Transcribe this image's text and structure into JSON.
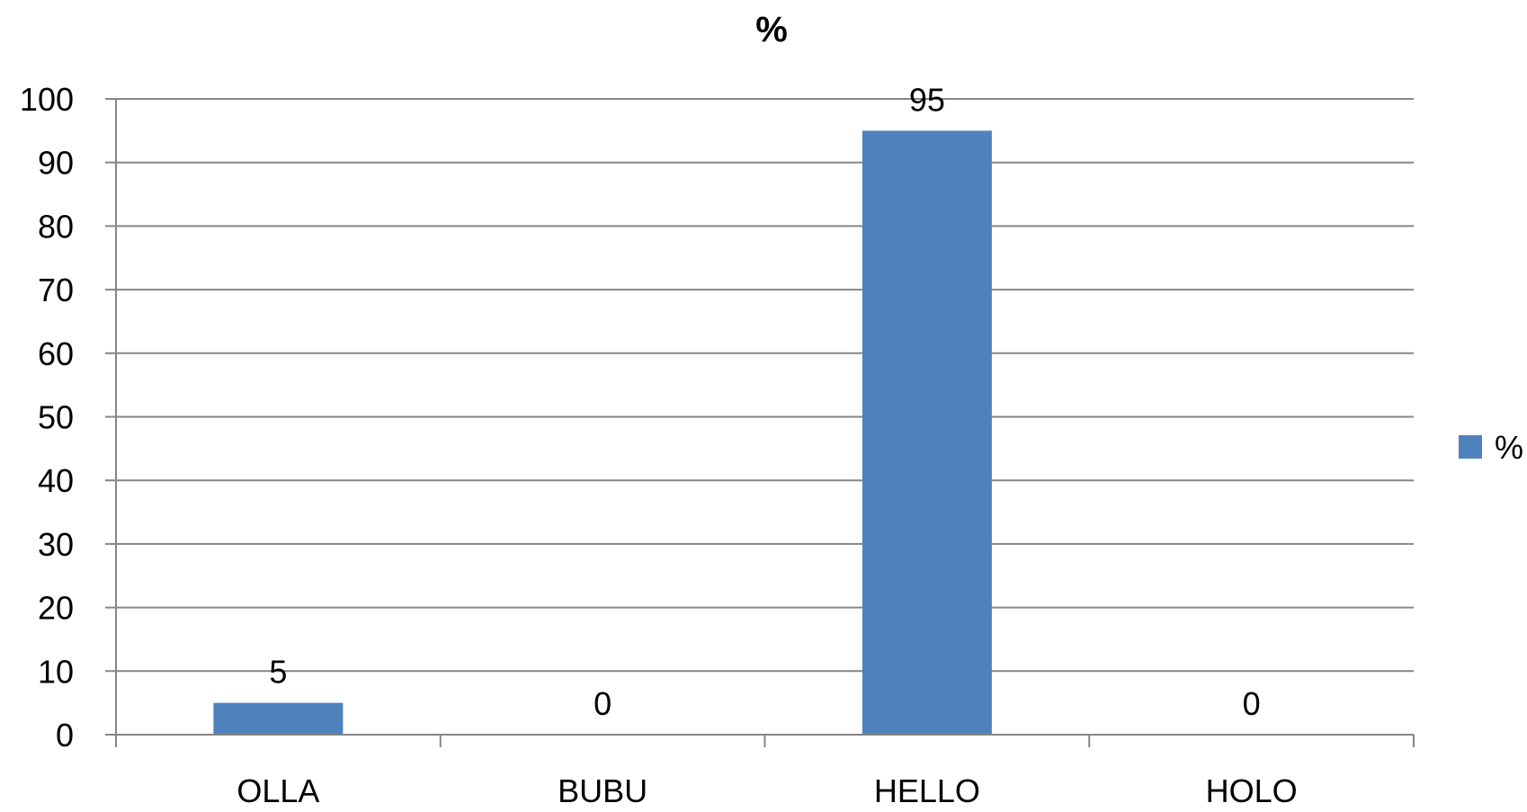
{
  "chart_data": {
    "type": "bar",
    "title": "%",
    "categories": [
      "OLLA",
      "BUBU",
      "HELLO",
      "HOLO"
    ],
    "series": [
      {
        "name": "%",
        "values": [
          5,
          0,
          95,
          0
        ],
        "color": "#4F81BD"
      }
    ],
    "data_labels": [
      "5",
      "0",
      "95",
      "0"
    ],
    "ylim": [
      0,
      100
    ],
    "yticks": [
      0,
      10,
      20,
      30,
      40,
      50,
      60,
      70,
      80,
      90,
      100
    ],
    "ytick_labels": [
      "0",
      "10",
      "20",
      "30",
      "40",
      "50",
      "60",
      "70",
      "80",
      "90",
      "100"
    ],
    "xlabel": "",
    "ylabel": "",
    "grid": true,
    "legend_position": "right",
    "colors": {
      "bar": "#4F81BD",
      "grid": "#868686",
      "axis": "#868686"
    }
  }
}
